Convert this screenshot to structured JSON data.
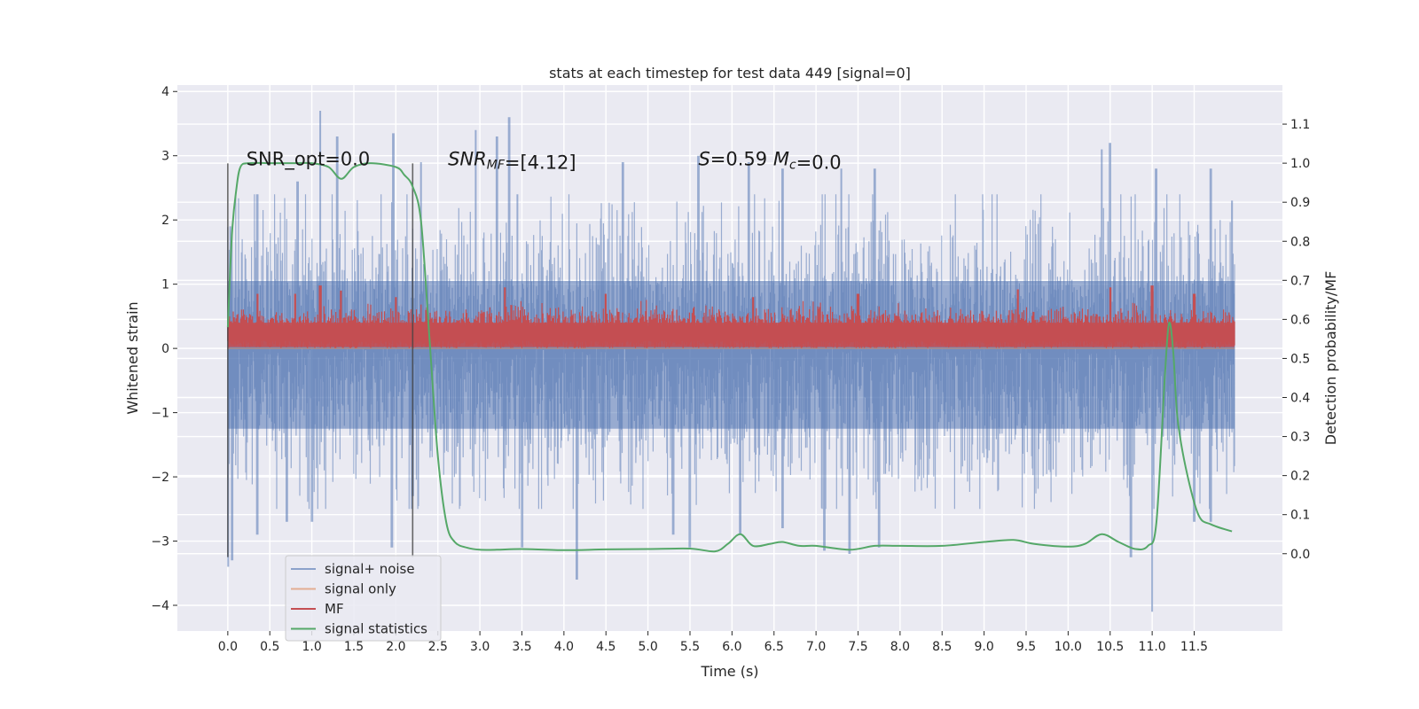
{
  "chart_data": {
    "type": "line",
    "title": "stats at each timestep for test data 449 [signal=0]",
    "xlabel": "Time (s)",
    "ylabel": "Whitened strain",
    "y2label": "Detection probability/MF",
    "xlim": [
      -0.6,
      12.55
    ],
    "ylim": [
      -4.4,
      4.1
    ],
    "y2lim": [
      -0.198,
      1.2
    ],
    "x_ticks": [
      0.0,
      0.5,
      1.0,
      1.5,
      2.0,
      2.5,
      3.0,
      3.5,
      4.0,
      4.5,
      5.0,
      5.5,
      6.0,
      6.5,
      7.0,
      7.5,
      8.0,
      8.5,
      9.0,
      9.5,
      10.0,
      10.5,
      11.0,
      11.5
    ],
    "x_tick_labels": [
      "0.0",
      "0.5",
      "1.0",
      "1.5",
      "2.0",
      "2.5",
      "3.0",
      "3.5",
      "4.0",
      "4.5",
      "5.0",
      "5.5",
      "6.0",
      "6.5",
      "7.0",
      "7.5",
      "8.0",
      "8.5",
      "9.0",
      "9.5",
      "10.0",
      "10.5",
      "11.0",
      "11.5"
    ],
    "y_ticks": [
      4,
      3,
      2,
      1,
      0,
      -1,
      -2,
      -3,
      -4
    ],
    "y_tick_labels": [
      "4",
      "3",
      "2",
      "1",
      "0",
      "−1",
      "−2",
      "−3",
      "−4"
    ],
    "y2_ticks": [
      1.1,
      1.0,
      0.9,
      0.8,
      0.7,
      0.6,
      0.5,
      0.4,
      0.3,
      0.2,
      0.1,
      0.0
    ],
    "y2_tick_labels": [
      "1.1",
      "1.0",
      "0.9",
      "0.8",
      "0.7",
      "0.6",
      "0.5",
      "0.4",
      "0.3",
      "0.2",
      "0.1",
      "0.0"
    ],
    "grid": true,
    "legend_position": "lower-left",
    "background_color": "#eaeaf2",
    "series": [
      {
        "name": "signal+ noise",
        "color": "#4c72b0",
        "style": "noise",
        "x_range": [
          0.0,
          11.98
        ],
        "band_upper_typical": 1.7,
        "band_lower_typical": -1.8,
        "peaks_upper": [
          [
            0.03,
            1.9
          ],
          [
            0.35,
            2.4
          ],
          [
            0.83,
            2.6
          ],
          [
            1.1,
            3.7
          ],
          [
            1.3,
            3.3
          ],
          [
            1.97,
            3.35
          ],
          [
            2.3,
            2.9
          ],
          [
            2.95,
            3.4
          ],
          [
            3.2,
            3.3
          ],
          [
            3.35,
            3.6
          ],
          [
            4.7,
            2.9
          ],
          [
            5.6,
            3.0
          ],
          [
            6.2,
            2.9
          ],
          [
            6.6,
            2.8
          ],
          [
            7.3,
            2.8
          ],
          [
            7.7,
            2.8
          ],
          [
            10.4,
            3.1
          ],
          [
            10.5,
            3.2
          ],
          [
            11.05,
            2.8
          ],
          [
            11.7,
            2.8
          ],
          [
            11.95,
            2.3
          ]
        ],
        "peaks_lower": [
          [
            0.0,
            -3.4
          ],
          [
            0.05,
            -3.3
          ],
          [
            0.35,
            -2.9
          ],
          [
            0.7,
            -2.7
          ],
          [
            1.0,
            -2.7
          ],
          [
            1.95,
            -3.1
          ],
          [
            2.2,
            -2.3
          ],
          [
            3.5,
            -3.1
          ],
          [
            4.15,
            -3.6
          ],
          [
            5.3,
            -2.9
          ],
          [
            5.5,
            -3.1
          ],
          [
            6.1,
            -2.9
          ],
          [
            6.6,
            -2.8
          ],
          [
            7.1,
            -3.15
          ],
          [
            7.4,
            -3.2
          ],
          [
            7.75,
            -3.1
          ],
          [
            10.75,
            -3.25
          ],
          [
            11.0,
            -4.1
          ],
          [
            11.5,
            -2.7
          ],
          [
            11.7,
            -2.7
          ]
        ]
      },
      {
        "name": "signal only",
        "color": "#dd8452",
        "values_description": "zero"
      },
      {
        "name": "MF",
        "color": "#c44e52",
        "style": "noise",
        "x_range": [
          0.0,
          11.98
        ],
        "base": 0.01,
        "band_upper_typical": 0.5,
        "peaks_upper": [
          [
            0.35,
            0.85
          ],
          [
            0.8,
            0.85
          ],
          [
            1.1,
            0.98
          ],
          [
            1.35,
            0.9
          ],
          [
            2.0,
            0.8
          ],
          [
            3.3,
            0.95
          ],
          [
            4.5,
            0.85
          ],
          [
            6.25,
            0.8
          ],
          [
            7.5,
            0.85
          ],
          [
            9.4,
            0.92
          ],
          [
            10.5,
            0.95
          ],
          [
            11.0,
            0.98
          ],
          [
            11.5,
            0.85
          ]
        ]
      },
      {
        "name": "signal statistics",
        "color": "#55a868",
        "axis": "y2",
        "x": [
          0.0,
          0.05,
          0.1,
          0.15,
          0.25,
          0.5,
          0.8,
          1.0,
          1.2,
          1.35,
          1.5,
          1.7,
          2.0,
          2.1,
          2.2,
          2.3,
          2.4,
          2.5,
          2.6,
          2.7,
          2.85,
          3.0,
          3.2,
          3.5,
          4.0,
          4.5,
          5.0,
          5.5,
          5.8,
          5.95,
          6.1,
          6.25,
          6.45,
          6.6,
          6.8,
          7.0,
          7.4,
          7.7,
          8.0,
          8.5,
          9.0,
          9.35,
          9.6,
          10.0,
          10.2,
          10.4,
          10.6,
          10.8,
          10.95,
          11.05,
          11.15,
          11.2,
          11.25,
          11.3,
          11.4,
          11.55,
          11.7,
          11.95
        ],
        "y": [
          0.58,
          0.82,
          0.93,
          0.99,
          1.0,
          1.0,
          1.0,
          1.0,
          0.99,
          0.96,
          0.99,
          1.0,
          0.99,
          0.97,
          0.94,
          0.85,
          0.55,
          0.25,
          0.08,
          0.03,
          0.015,
          0.01,
          0.01,
          0.012,
          0.009,
          0.011,
          0.012,
          0.013,
          0.006,
          0.025,
          0.05,
          0.02,
          0.025,
          0.03,
          0.02,
          0.02,
          0.01,
          0.02,
          0.02,
          0.02,
          0.03,
          0.035,
          0.025,
          0.018,
          0.025,
          0.05,
          0.03,
          0.012,
          0.02,
          0.08,
          0.45,
          0.59,
          0.52,
          0.35,
          0.22,
          0.1,
          0.075,
          0.057
        ]
      }
    ],
    "vlines": [
      {
        "x": 0.0,
        "y_from": -3.25,
        "y_to": 2.88
      },
      {
        "x": 2.2,
        "y_from": -3.25,
        "y_to": 2.88
      }
    ],
    "annotations": [
      {
        "x": 0.22,
        "y": 2.85,
        "parts": [
          {
            "text": "SNR_opt=0.0",
            "italic": false
          }
        ]
      },
      {
        "x": 2.62,
        "y": 2.85,
        "parts": [
          {
            "text": "SNR",
            "italic": true
          },
          {
            "text": "MF",
            "italic": true,
            "sub": true
          },
          {
            "text": "=[4.12]",
            "italic": false
          }
        ]
      },
      {
        "x": 5.6,
        "y": 2.85,
        "parts": [
          {
            "text": "S",
            "italic": true
          },
          {
            "text": "=0.59   ",
            "italic": false
          },
          {
            "text": "M",
            "italic": true
          },
          {
            "text": "c",
            "italic": true,
            "sub": true
          },
          {
            "text": "=0.0",
            "italic": false
          }
        ]
      }
    ]
  }
}
